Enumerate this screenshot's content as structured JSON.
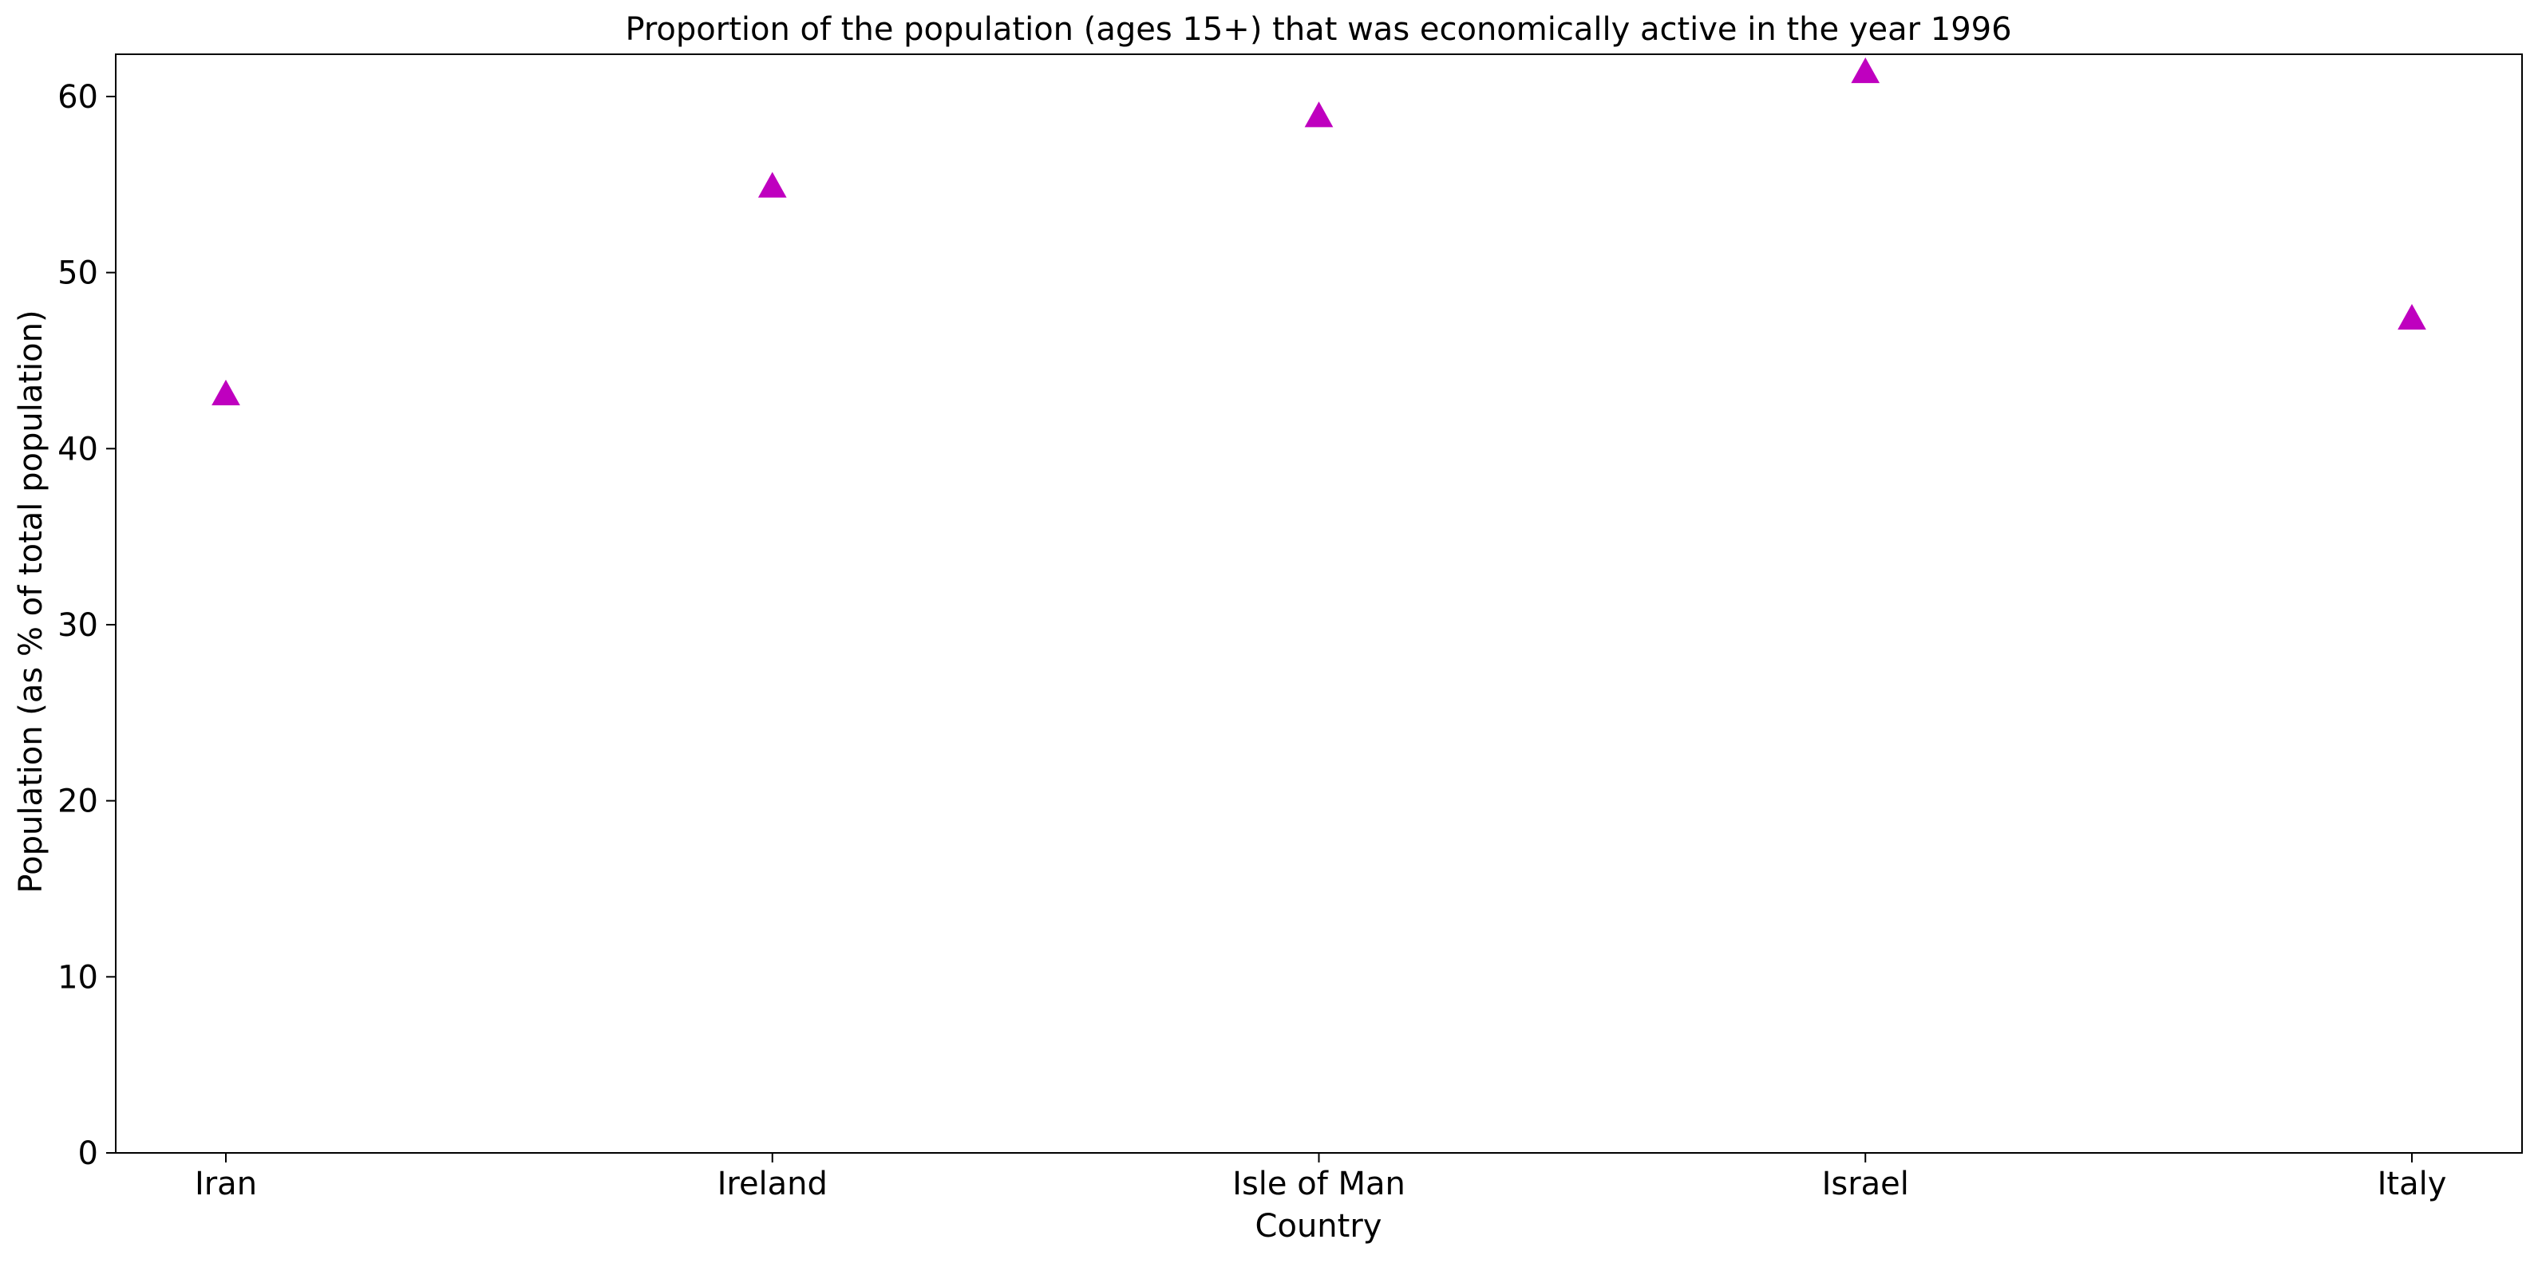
{
  "chart_data": {
    "type": "scatter",
    "title": "Proportion of the population (ages 15+) that was economically active in the year 1996",
    "xlabel": "Country",
    "ylabel": "Population (as % of total population)",
    "categories": [
      "Iran",
      "Ireland",
      "Isle of Man",
      "Israel",
      "Italy"
    ],
    "series": [
      {
        "marker": "triangle-up",
        "color": "#bf00bf",
        "values": [
          43.1,
          54.9,
          58.9,
          61.4,
          47.4
        ]
      }
    ],
    "ylim": [
      0,
      62.4
    ],
    "yticks": [
      0,
      10,
      20,
      30,
      40,
      50,
      60
    ],
    "grid": false,
    "legend": "none"
  }
}
